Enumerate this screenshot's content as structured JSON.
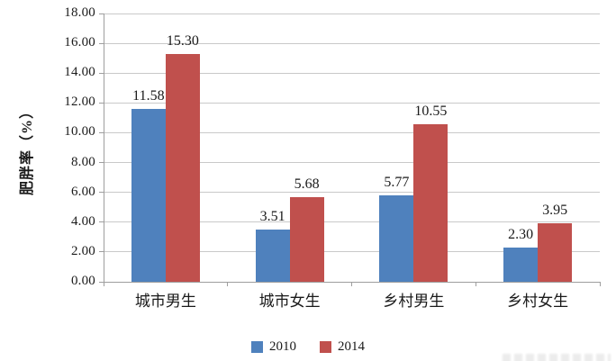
{
  "chart_data": {
    "type": "bar",
    "title": "",
    "categories": [
      "城市男生",
      "城市女生",
      "乡村男生",
      "乡村女生"
    ],
    "series": [
      {
        "name": "2010",
        "color": "#4F81BD",
        "values": [
          11.58,
          3.51,
          5.77,
          2.3
        ]
      },
      {
        "name": "2014",
        "color": "#C0504D",
        "values": [
          15.3,
          5.68,
          10.55,
          3.95
        ]
      }
    ],
    "xlabel": "",
    "ylabel": "肥胖率（%）",
    "ylim": [
      0,
      18
    ],
    "ytick_step": 2,
    "ytick_decimals": 2,
    "value_labels": true,
    "value_label_decimals": 2,
    "grid": true,
    "legend_position": "bottom",
    "colors": {
      "gridline": "#c9c9c9",
      "axis": "#9e9e9e",
      "text": "#1a1a1a",
      "background": "#ffffff"
    }
  }
}
